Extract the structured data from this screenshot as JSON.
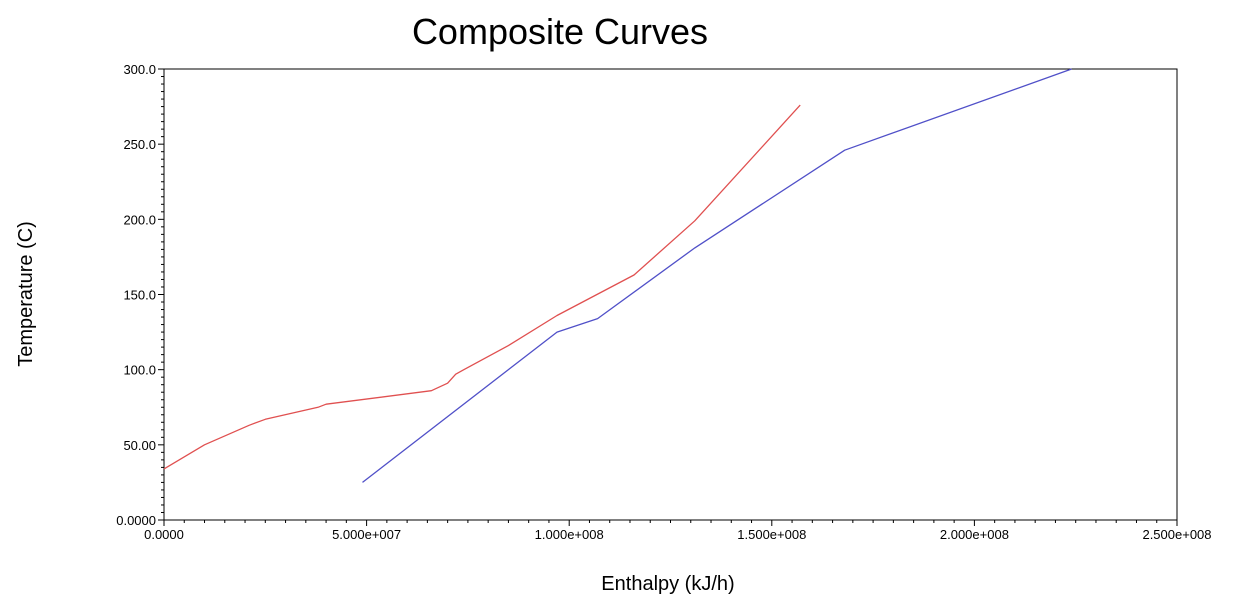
{
  "chart_data": {
    "type": "line",
    "title": "Composite Curves",
    "xlabel": "Enthalpy (kJ/h)",
    "ylabel": "Temperature (C)",
    "xlim": [
      0,
      250000000
    ],
    "ylim": [
      0,
      300
    ],
    "x_tick_labels": [
      "0.0000",
      "5.000e+007",
      "1.000e+008",
      "1.500e+008",
      "2.000e+008",
      "2.500e+008"
    ],
    "y_tick_labels": [
      "0.0000",
      "50.00",
      "100.0",
      "150.0",
      "200.0",
      "250.0",
      "300.0"
    ],
    "grid": false,
    "series": [
      {
        "color": "#e05050",
        "x": [
          0,
          10000000,
          21000000,
          25000000,
          38000000,
          40000000,
          66000000,
          70000000,
          72000000,
          74000000,
          85000000,
          97000000,
          116000000,
          131000000,
          157000000
        ],
        "y": [
          34,
          50,
          63,
          67,
          75,
          77,
          86,
          91,
          97,
          100,
          116,
          136,
          163,
          199,
          276
        ]
      },
      {
        "color": "#5050c8",
        "x": [
          49000000,
          97000000,
          107000000,
          131000000,
          168000000,
          224000000
        ],
        "y": [
          25,
          125,
          134,
          181,
          246,
          300
        ]
      }
    ]
  }
}
